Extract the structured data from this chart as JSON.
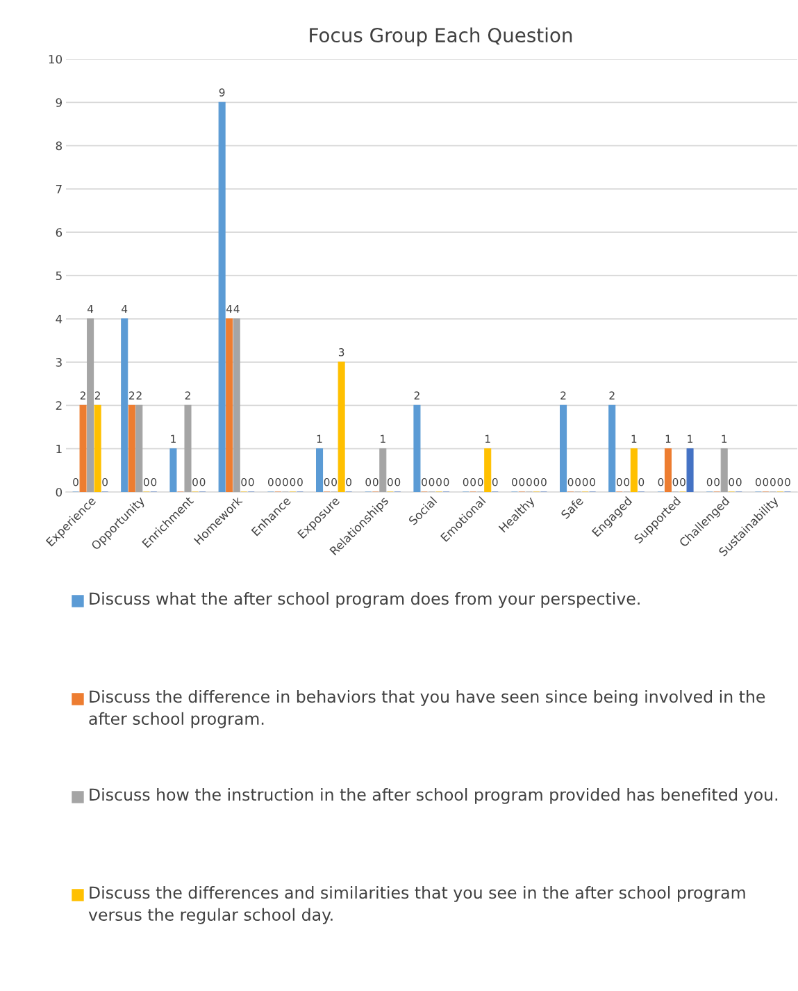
{
  "chart_data": {
    "type": "bar",
    "title": "Focus Group Each Question",
    "categories": [
      "Experience",
      "Opportunity",
      "Enrichment",
      "Homework",
      "Enhance",
      "Exposure",
      "Relationships",
      "Social",
      "Emotional",
      "Healthy",
      "Safe",
      "Engaged",
      "Supported",
      "Challenged",
      "Sustainability"
    ],
    "series": [
      {
        "name": "Discuss what the after school program does from your perspective.",
        "color": "#5b9bd5",
        "values": [
          0,
          4,
          1,
          9,
          0,
          1,
          0,
          2,
          0,
          0,
          2,
          2,
          0,
          0,
          0
        ],
        "value_labels": [
          "0",
          "4",
          "1",
          "9",
          "0",
          "1",
          "0",
          "2",
          "0",
          "0",
          "2",
          "2",
          "0",
          "0",
          "0"
        ]
      },
      {
        "name": "Discuss the difference in behaviors that you have seen since being involved in the after school program.",
        "color": "#ed7d31",
        "values": [
          2,
          2,
          0,
          4,
          0,
          0,
          0,
          0,
          0,
          0,
          0,
          0,
          1,
          0,
          0
        ],
        "value_labels": [
          "2",
          "2",
          null,
          "4",
          "0",
          "0",
          "0",
          "0",
          "0",
          "0",
          "0",
          "0",
          "1",
          "0",
          "0"
        ]
      },
      {
        "name": "Discuss how the instruction in the after school program provided has benefited you.",
        "color": "#a5a5a5",
        "values": [
          4,
          2,
          2,
          4,
          0,
          0,
          1,
          0,
          0,
          0,
          0,
          0,
          0,
          1,
          0
        ],
        "value_labels": [
          "4",
          "2",
          "2",
          "4",
          "0",
          "0",
          "1",
          "0",
          "0",
          "0",
          "0",
          "0",
          "0",
          "1",
          "0"
        ]
      },
      {
        "name": "Discuss the differences and similarities that you see in the after school program versus the regular school day.",
        "color": "#ffc000",
        "values": [
          2,
          0,
          0,
          0,
          0,
          3,
          0,
          0,
          1,
          0,
          0,
          1,
          0,
          0,
          0
        ],
        "value_labels": [
          "2",
          "0",
          "0",
          "0",
          "0",
          "3",
          "0",
          "0",
          "1",
          "0",
          "0",
          "1",
          "0",
          "0",
          "0"
        ]
      },
      {
        "color": "#4472c4",
        "values": [
          0,
          0,
          0,
          0,
          0,
          0,
          0,
          0,
          0,
          0,
          0,
          0,
          1,
          0,
          0
        ],
        "value_labels": [
          "0",
          "0",
          "0",
          "0",
          "0",
          "0",
          "0",
          "0",
          "0",
          "0",
          "0",
          "0",
          "1",
          "0",
          "0"
        ]
      }
    ],
    "ylim": [
      0,
      10
    ],
    "yticks": [
      0,
      1,
      2,
      3,
      4,
      5,
      6,
      7,
      8,
      9,
      10
    ],
    "grid": "y",
    "legend": "bottom"
  }
}
